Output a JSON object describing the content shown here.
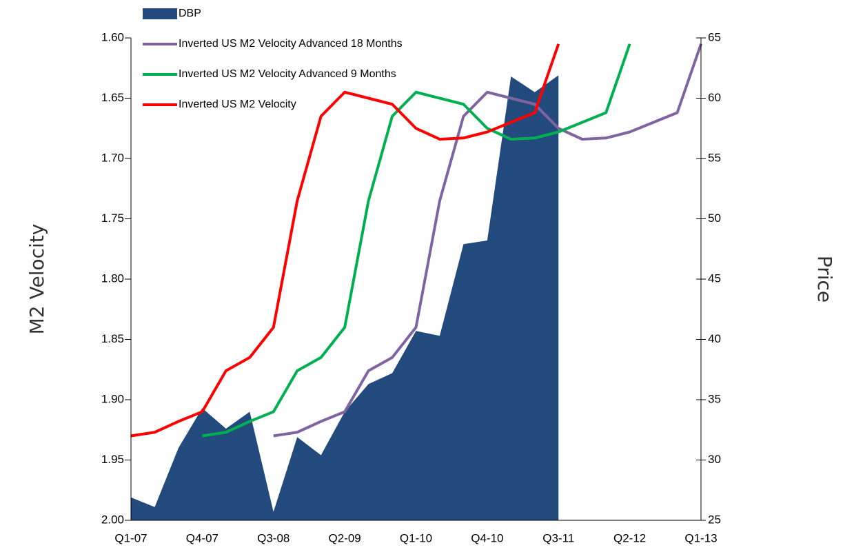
{
  "chart_data": {
    "type": "line",
    "categories": [
      "Q1-07",
      null,
      null,
      "Q4-07",
      null,
      null,
      "Q3-08",
      null,
      null,
      "Q2-09",
      null,
      null,
      "Q1-10",
      null,
      null,
      "Q4-10",
      null,
      null,
      "Q3-11",
      null,
      null,
      "Q2-12",
      null,
      null,
      "Q1-13"
    ],
    "ylabel": "M2 Velocity",
    "y2label": "Price",
    "ylim": [
      1.6,
      2.0
    ],
    "y_inverted": true,
    "yticks": [
      {
        "value": 1.6,
        "label": "1.60"
      },
      {
        "value": 1.65,
        "label": "1.65"
      },
      {
        "value": 1.7,
        "label": "1.70"
      },
      {
        "value": 1.75,
        "label": "1.75"
      },
      {
        "value": 1.8,
        "label": "1.80"
      },
      {
        "value": 1.85,
        "label": "1.85"
      },
      {
        "value": 1.9,
        "label": "1.90"
      },
      {
        "value": 1.95,
        "label": "1.95"
      },
      {
        "value": 2.0,
        "label": "2.00"
      }
    ],
    "y2lim": [
      25,
      65
    ],
    "y2ticks": [
      25,
      30,
      35,
      40,
      45,
      50,
      55,
      60,
      65
    ],
    "legend": "top-left",
    "series": [
      {
        "name": "DBP",
        "kind": "area",
        "axis": "y2",
        "color": "#234a7d",
        "values": [
          26.9,
          26.1,
          31.0,
          34.3,
          32.6,
          34.0,
          25.7,
          31.9,
          30.4,
          34.0,
          36.3,
          37.2,
          40.7,
          40.3,
          47.9,
          48.2,
          61.8,
          60.5,
          61.9,
          null,
          null,
          null,
          null,
          null,
          null
        ]
      },
      {
        "name": "Inverted US M2 Velocity Advanced 18 Months",
        "color": "#8064a2",
        "values": [
          null,
          null,
          null,
          null,
          null,
          null,
          1.93,
          1.927,
          1.918,
          1.91,
          1.876,
          1.865,
          1.84,
          1.735,
          1.665,
          1.645,
          1.65,
          1.655,
          1.675,
          1.684,
          1.683,
          1.678,
          1.67,
          1.662,
          1.605
        ]
      },
      {
        "name": "Inverted US M2 Velocity Advanced 9 Months",
        "color": "#00b050",
        "values": [
          null,
          null,
          null,
          1.93,
          1.927,
          1.918,
          1.91,
          1.876,
          1.865,
          1.84,
          1.735,
          1.665,
          1.645,
          1.65,
          1.655,
          1.675,
          1.684,
          1.683,
          1.678,
          1.67,
          1.662,
          1.605,
          null,
          null,
          null
        ]
      },
      {
        "name": "Inverted US M2 Velocity",
        "color": "#ff0000",
        "values": [
          1.93,
          1.927,
          1.918,
          1.91,
          1.876,
          1.865,
          1.84,
          1.735,
          1.665,
          1.645,
          1.65,
          1.655,
          1.675,
          1.684,
          1.683,
          1.678,
          1.67,
          1.662,
          1.605,
          null,
          null,
          null,
          null,
          null,
          null
        ]
      }
    ]
  }
}
